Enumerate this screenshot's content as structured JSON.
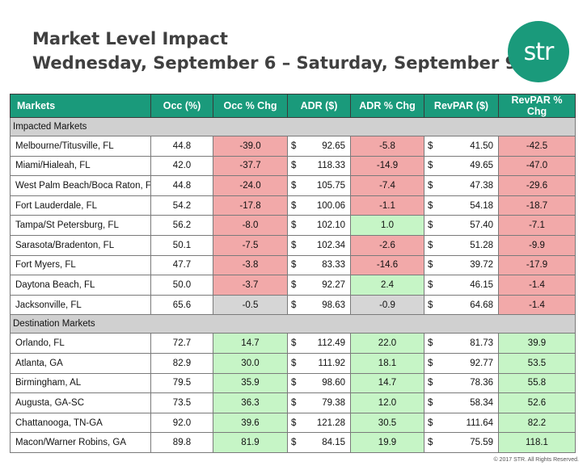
{
  "header": {
    "title_line1": "Market Level Impact",
    "title_line2": "Wednesday, September 6 – Saturday, September 9",
    "logo_text": "str"
  },
  "colors": {
    "header_bg": "#1a9a7b",
    "positive": "#c6f5c6",
    "negative": "#f2a9a9",
    "neutral": "#d6d6d6",
    "group_bg": "#d0d0d0"
  },
  "chart_data": {
    "type": "table",
    "columns": [
      "Markets",
      "Occ (%)",
      "Occ % Chg",
      "ADR ($)",
      "ADR % Chg",
      "RevPAR ($)",
      "RevPAR % Chg"
    ],
    "currency_symbol": "$",
    "groups": [
      {
        "name": "Impacted Markets",
        "rows": [
          {
            "market": "Melbourne/Titusville, FL",
            "occ": "44.8",
            "occ_chg": "-39.0",
            "adr": "92.65",
            "adr_chg": "-5.8",
            "revpar": "41.50",
            "revpar_chg": "-42.5"
          },
          {
            "market": "Miami/Hialeah, FL",
            "occ": "42.0",
            "occ_chg": "-37.7",
            "adr": "118.33",
            "adr_chg": "-14.9",
            "revpar": "49.65",
            "revpar_chg": "-47.0"
          },
          {
            "market": "West Palm Beach/Boca Raton, FL",
            "occ": "44.8",
            "occ_chg": "-24.0",
            "adr": "105.75",
            "adr_chg": "-7.4",
            "revpar": "47.38",
            "revpar_chg": "-29.6"
          },
          {
            "market": "Fort Lauderdale, FL",
            "occ": "54.2",
            "occ_chg": "-17.8",
            "adr": "100.06",
            "adr_chg": "-1.1",
            "revpar": "54.18",
            "revpar_chg": "-18.7"
          },
          {
            "market": "Tampa/St Petersburg, FL",
            "occ": "56.2",
            "occ_chg": "-8.0",
            "adr": "102.10",
            "adr_chg": "1.0",
            "revpar": "57.40",
            "revpar_chg": "-7.1"
          },
          {
            "market": "Sarasota/Bradenton, FL",
            "occ": "50.1",
            "occ_chg": "-7.5",
            "adr": "102.34",
            "adr_chg": "-2.6",
            "revpar": "51.28",
            "revpar_chg": "-9.9"
          },
          {
            "market": "Fort Myers, FL",
            "occ": "47.7",
            "occ_chg": "-3.8",
            "adr": "83.33",
            "adr_chg": "-14.6",
            "revpar": "39.72",
            "revpar_chg": "-17.9"
          },
          {
            "market": "Daytona Beach, FL",
            "occ": "50.0",
            "occ_chg": "-3.7",
            "adr": "92.27",
            "adr_chg": "2.4",
            "revpar": "46.15",
            "revpar_chg": "-1.4"
          },
          {
            "market": "Jacksonville, FL",
            "occ": "65.6",
            "occ_chg": "-0.5",
            "adr": "98.63",
            "adr_chg": "-0.9",
            "revpar": "64.68",
            "revpar_chg": "-1.4"
          }
        ]
      },
      {
        "name": "Destination Markets",
        "rows": [
          {
            "market": "Orlando, FL",
            "occ": "72.7",
            "occ_chg": "14.7",
            "adr": "112.49",
            "adr_chg": "22.0",
            "revpar": "81.73",
            "revpar_chg": "39.9"
          },
          {
            "market": "Atlanta, GA",
            "occ": "82.9",
            "occ_chg": "30.0",
            "adr": "111.92",
            "adr_chg": "18.1",
            "revpar": "92.77",
            "revpar_chg": "53.5"
          },
          {
            "market": "Birmingham, AL",
            "occ": "79.5",
            "occ_chg": "35.9",
            "adr": "98.60",
            "adr_chg": "14.7",
            "revpar": "78.36",
            "revpar_chg": "55.8"
          },
          {
            "market": "Augusta, GA-SC",
            "occ": "73.5",
            "occ_chg": "36.3",
            "adr": "79.38",
            "adr_chg": "12.0",
            "revpar": "58.34",
            "revpar_chg": "52.6"
          },
          {
            "market": "Chattanooga, TN-GA",
            "occ": "92.0",
            "occ_chg": "39.6",
            "adr": "121.28",
            "adr_chg": "30.5",
            "revpar": "111.64",
            "revpar_chg": "82.2"
          },
          {
            "market": "Macon/Warner Robins, GA",
            "occ": "89.8",
            "occ_chg": "81.9",
            "adr": "84.15",
            "adr_chg": "19.9",
            "revpar": "75.59",
            "revpar_chg": "118.1"
          }
        ]
      }
    ]
  },
  "footer": {
    "copyright": "© 2017 STR. All Rights Reserved."
  }
}
